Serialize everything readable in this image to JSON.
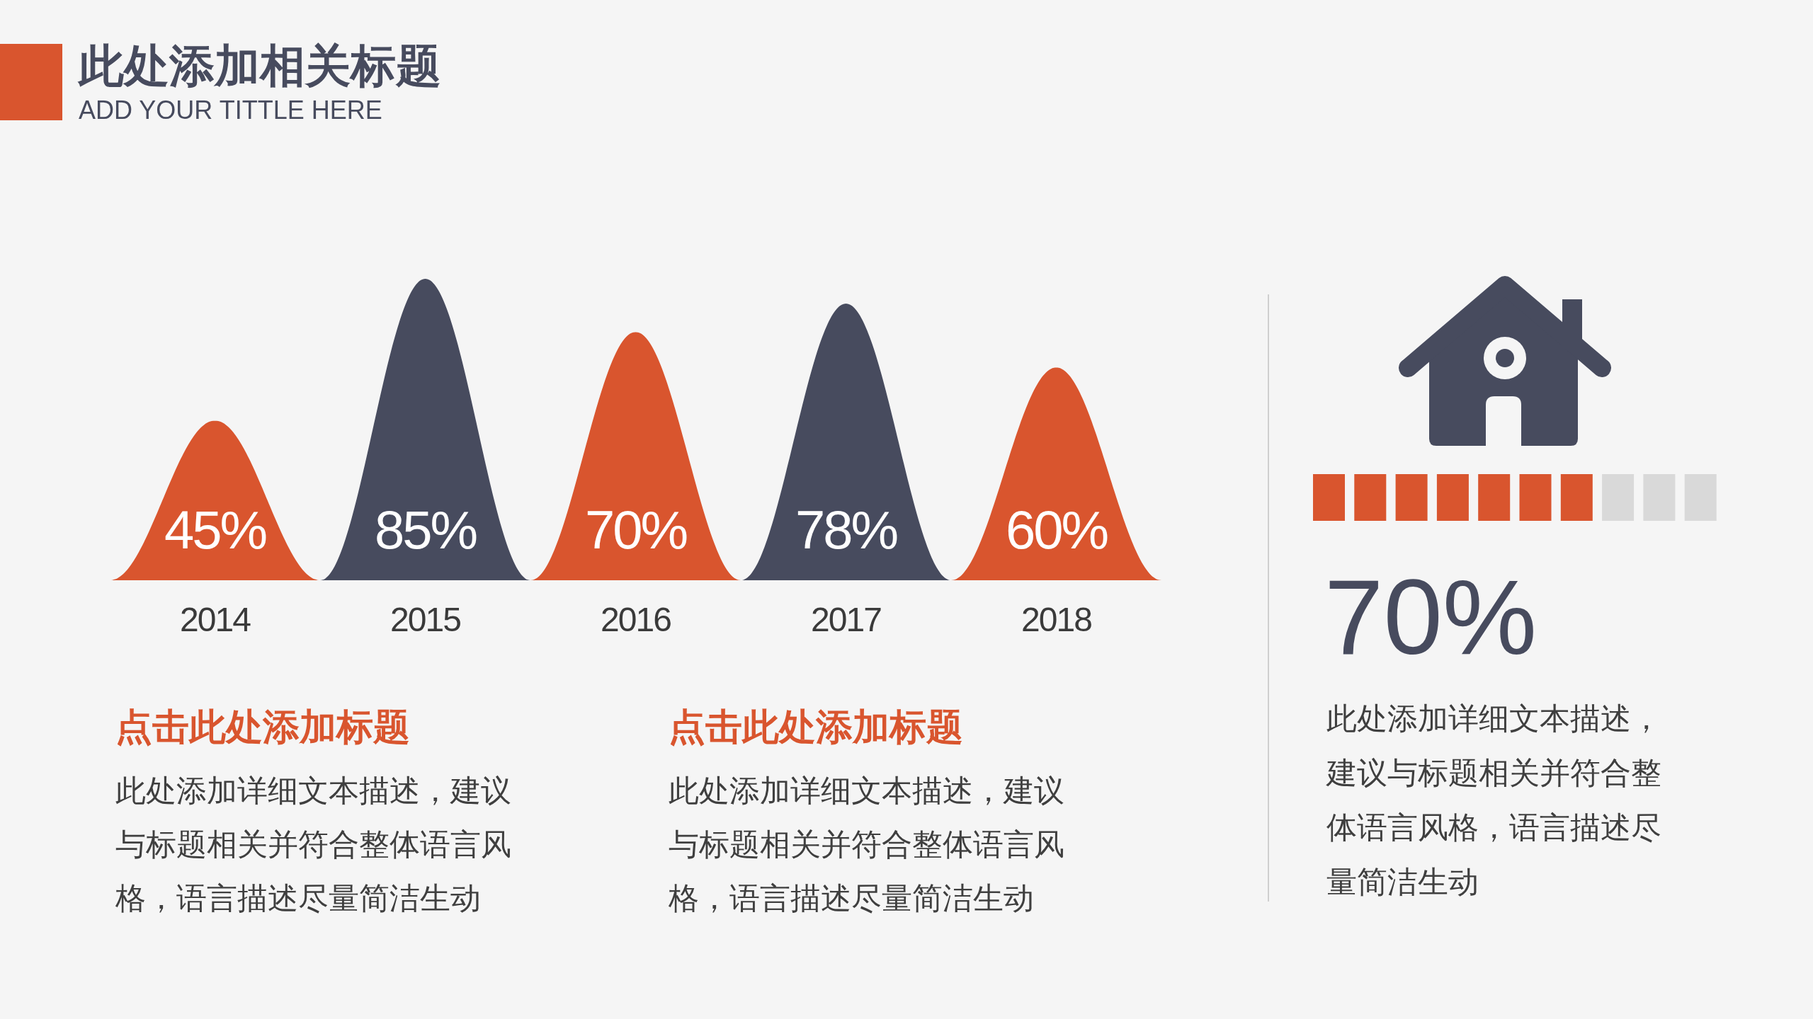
{
  "chart_data": [
    {
      "type": "bar",
      "title": "此处添加相关标题",
      "subtitle": "ADD YOUR TITTLE HERE",
      "categories": [
        "2014",
        "2015",
        "2016",
        "2017",
        "2018"
      ],
      "values": [
        45,
        85,
        70,
        78,
        60
      ],
      "colors": [
        "#d9552e",
        "#474b5e",
        "#d9552e",
        "#474b5e",
        "#d9552e"
      ],
      "value_labels": [
        "45%",
        "85%",
        "70%",
        "78%",
        "60%"
      ],
      "tick_labels": "x",
      "annotations": [
        "点击此处添加标题",
        "此处添加详细文本描述，建议与标题相关并符合整体语言风格，语言描述尽量简洁生动",
        "点击此处添加标题",
        "此处添加详细文本描述，建议与标题相关并符合整体语言风格，语言描述尽量简洁生动"
      ]
    },
    {
      "type": "other",
      "values": [
        70
      ],
      "value_labels": [
        "70%"
      ],
      "color": "#d9552e",
      "annotations": [
        "此处添加详细文本描述，建议与标题相关并符合整体语言风格，语言描述尽量简洁生动"
      ]
    }
  ]
}
